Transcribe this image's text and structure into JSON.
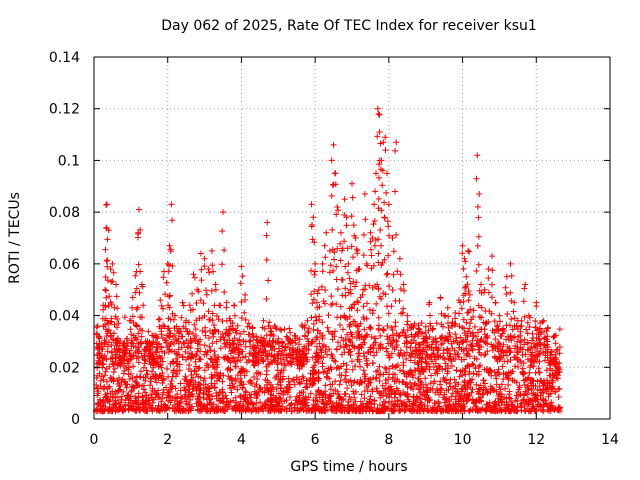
{
  "chart_data": {
    "type": "scatter",
    "title": "Day 062 of 2025, Rate Of TEC Index for receiver ksu1",
    "xlabel": "GPS time / hours",
    "ylabel": "ROTI / TECUs",
    "xlim": [
      0,
      14
    ],
    "ylim": [
      0,
      0.14
    ],
    "xticks": [
      "0",
      "2",
      "4",
      "6",
      "8",
      "10",
      "12",
      "14"
    ],
    "yticks": [
      "0",
      "0.02",
      "0.04",
      "0.06",
      "0.08",
      "0.1",
      "0.12",
      "0.14"
    ],
    "grid": true,
    "marker": "+",
    "color": "#ff0000",
    "series": [
      {
        "points": [
          [
            0.1,
            0.036
          ],
          [
            0.15,
            0.032
          ],
          [
            0.2,
            0.029
          ],
          [
            0.25,
            0.044
          ],
          [
            0.3,
            0.05
          ],
          [
            0.33,
            0.074
          ],
          [
            0.35,
            0.083
          ],
          [
            0.4,
            0.073
          ],
          [
            0.45,
            0.058
          ],
          [
            0.5,
            0.06
          ],
          [
            0.55,
            0.043
          ],
          [
            0.6,
            0.052
          ],
          [
            0.65,
            0.031
          ],
          [
            0.7,
            0.024
          ],
          [
            0.8,
            0.029
          ],
          [
            0.9,
            0.031
          ],
          [
            1.0,
            0.038
          ],
          [
            1.05,
            0.047
          ],
          [
            1.15,
            0.057
          ],
          [
            1.2,
            0.072
          ],
          [
            1.22,
            0.081
          ],
          [
            1.3,
            0.052
          ],
          [
            1.4,
            0.03
          ],
          [
            1.5,
            0.027
          ],
          [
            1.6,
            0.025
          ],
          [
            1.7,
            0.032
          ],
          [
            1.8,
            0.046
          ],
          [
            1.9,
            0.057
          ],
          [
            2.0,
            0.06
          ],
          [
            2.05,
            0.067
          ],
          [
            2.1,
            0.083
          ],
          [
            2.2,
            0.04
          ],
          [
            2.3,
            0.035
          ],
          [
            2.4,
            0.045
          ],
          [
            2.5,
            0.038
          ],
          [
            2.6,
            0.044
          ],
          [
            2.7,
            0.056
          ],
          [
            2.8,
            0.05
          ],
          [
            2.9,
            0.064
          ],
          [
            3.0,
            0.062
          ],
          [
            3.1,
            0.058
          ],
          [
            3.2,
            0.065
          ],
          [
            3.3,
            0.052
          ],
          [
            3.4,
            0.044
          ],
          [
            3.5,
            0.08
          ],
          [
            3.6,
            0.045
          ],
          [
            3.7,
            0.038
          ],
          [
            3.8,
            0.044
          ],
          [
            3.9,
            0.036
          ],
          [
            4.0,
            0.059
          ],
          [
            4.1,
            0.048
          ],
          [
            4.2,
            0.037
          ],
          [
            4.3,
            0.035
          ],
          [
            4.4,
            0.032
          ],
          [
            4.5,
            0.03
          ],
          [
            4.6,
            0.038
          ],
          [
            4.7,
            0.076
          ],
          [
            4.8,
            0.034
          ],
          [
            4.9,
            0.036
          ],
          [
            5.0,
            0.031
          ],
          [
            5.1,
            0.03
          ],
          [
            5.2,
            0.028
          ],
          [
            5.3,
            0.035
          ],
          [
            5.4,
            0.027
          ],
          [
            5.5,
            0.025
          ],
          [
            5.6,
            0.024
          ],
          [
            5.7,
            0.028
          ],
          [
            5.8,
            0.034
          ],
          [
            5.9,
            0.083
          ],
          [
            5.95,
            0.078
          ],
          [
            6.0,
            0.06
          ],
          [
            6.05,
            0.045
          ],
          [
            6.1,
            0.05
          ],
          [
            6.2,
            0.06
          ],
          [
            6.3,
            0.072
          ],
          [
            6.4,
            0.065
          ],
          [
            6.45,
            0.1
          ],
          [
            6.5,
            0.106
          ],
          [
            6.55,
            0.095
          ],
          [
            6.6,
            0.082
          ],
          [
            6.7,
            0.072
          ],
          [
            6.75,
            0.066
          ],
          [
            6.8,
            0.085
          ],
          [
            6.85,
            0.078
          ],
          [
            6.9,
            0.06
          ],
          [
            6.95,
            0.05
          ],
          [
            7.0,
            0.091
          ],
          [
            7.05,
            0.075
          ],
          [
            7.1,
            0.07
          ],
          [
            7.15,
            0.065
          ],
          [
            7.2,
            0.058
          ],
          [
            7.3,
            0.05
          ],
          [
            7.35,
            0.087
          ],
          [
            7.4,
            0.06
          ],
          [
            7.5,
            0.072
          ],
          [
            7.55,
            0.07
          ],
          [
            7.6,
            0.083
          ],
          [
            7.65,
            0.095
          ],
          [
            7.7,
            0.12
          ],
          [
            7.72,
            0.118
          ],
          [
            7.75,
            0.111
          ],
          [
            7.8,
            0.1
          ],
          [
            7.85,
            0.107
          ],
          [
            7.9,
            0.109
          ],
          [
            7.95,
            0.095
          ],
          [
            8.0,
            0.083
          ],
          [
            8.1,
            0.07
          ],
          [
            8.2,
            0.107
          ],
          [
            8.3,
            0.062
          ],
          [
            8.4,
            0.052
          ],
          [
            8.5,
            0.04
          ],
          [
            8.6,
            0.036
          ],
          [
            8.7,
            0.032
          ],
          [
            8.8,
            0.035
          ],
          [
            8.9,
            0.033
          ],
          [
            9.0,
            0.031
          ],
          [
            9.1,
            0.045
          ],
          [
            9.2,
            0.035
          ],
          [
            9.3,
            0.03
          ],
          [
            9.4,
            0.047
          ],
          [
            9.5,
            0.04
          ],
          [
            9.6,
            0.043
          ],
          [
            9.7,
            0.036
          ],
          [
            9.8,
            0.041
          ],
          [
            9.9,
            0.046
          ],
          [
            10.0,
            0.067
          ],
          [
            10.05,
            0.062
          ],
          [
            10.1,
            0.055
          ],
          [
            10.15,
            0.065
          ],
          [
            10.2,
            0.048
          ],
          [
            10.3,
            0.042
          ],
          [
            10.4,
            0.102
          ],
          [
            10.45,
            0.087
          ],
          [
            10.5,
            0.052
          ],
          [
            10.6,
            0.05
          ],
          [
            10.7,
            0.058
          ],
          [
            10.8,
            0.063
          ],
          [
            10.9,
            0.045
          ],
          [
            11.0,
            0.04
          ],
          [
            11.1,
            0.035
          ],
          [
            11.2,
            0.055
          ],
          [
            11.3,
            0.06
          ],
          [
            11.4,
            0.045
          ],
          [
            11.5,
            0.038
          ],
          [
            11.6,
            0.036
          ],
          [
            11.7,
            0.052
          ],
          [
            11.8,
            0.04
          ],
          [
            11.9,
            0.033
          ],
          [
            12.0,
            0.045
          ],
          [
            12.1,
            0.035
          ],
          [
            12.2,
            0.038
          ],
          [
            12.3,
            0.032
          ],
          [
            12.4,
            0.026
          ],
          [
            12.5,
            0.023
          ],
          [
            12.6,
            0.018
          ]
        ]
      }
    ],
    "dense_band": {
      "x_start": 0.05,
      "x_end": 12.65,
      "y_floor": 0.003,
      "y_ceiling_typical": 0.03,
      "points_per_hour": 220
    }
  }
}
